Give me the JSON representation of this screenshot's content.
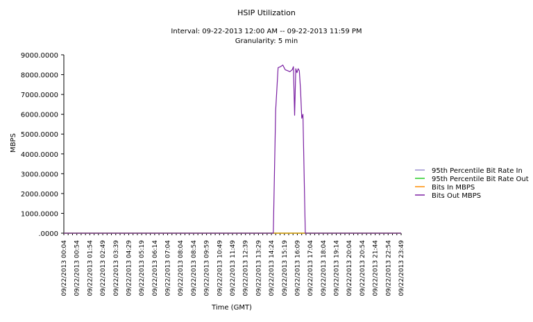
{
  "chart_data": {
    "type": "line",
    "title": "HSIP Utilization",
    "subtitle": [
      "Interval: 09-22-2013 12:00 AM -- 09-22-2013 11:59 PM",
      "Granularity: 5 min"
    ],
    "xlabel": "Time (GMT)",
    "ylabel": "MBPS",
    "xlim": [
      "00:04",
      "23:49"
    ],
    "ylim": [
      0,
      9000
    ],
    "y_ticks": [
      ".0000",
      "1000.0000",
      "2000.0000",
      "3000.0000",
      "4000.0000",
      "5000.0000",
      "6000.0000",
      "7000.0000",
      "8000.0000",
      "9000.0000"
    ],
    "x_tick_labels": [
      "09/22/2013 00:04",
      "09/22/2013 00:54",
      "09/22/2013 01:54",
      "09/22/2013 02:49",
      "09/22/2013 03:39",
      "09/22/2013 04:29",
      "09/22/2013 05:19",
      "09/22/2013 06:14",
      "09/22/2013 07:04",
      "09/22/2013 08:04",
      "09/22/2013 08:54",
      "09/22/2013 09:59",
      "09/22/2013 10:49",
      "09/22/2013 11:49",
      "09/22/2013 12:39",
      "09/22/2013 13:29",
      "09/22/2013 14:24",
      "09/22/2013 15:19",
      "09/22/2013 16:09",
      "09/22/2013 17:04",
      "09/22/2013 18:04",
      "09/22/2013 19:14",
      "09/22/2013 20:04",
      "09/22/2013 20:54",
      "09/22/2013 21:44",
      "09/22/2013 22:54",
      "09/22/2013 23:49"
    ],
    "grid": false,
    "legend_position": "right",
    "series": [
      {
        "name": "95th Percentile Bit Rate In",
        "color": "#9a8fd0",
        "x": [
          "00:04",
          "23:49"
        ],
        "values": [
          0,
          0
        ]
      },
      {
        "name": "95th Percentile Bit Rate Out",
        "color": "#22cc22",
        "x": [
          "00:04",
          "23:49"
        ],
        "values": [
          0,
          0
        ]
      },
      {
        "name": "Bits In MBPS",
        "color": "#ff8c00",
        "x": [
          "00:04",
          "23:49"
        ],
        "values": [
          0,
          0
        ]
      },
      {
        "name": "Bits Out MBPS",
        "color": "#7a1fa2",
        "x": [
          "00:04",
          "14:49",
          "14:59",
          "15:09",
          "15:19",
          "15:29",
          "15:39",
          "15:49",
          "15:59",
          "16:09",
          "16:14",
          "16:19",
          "16:24",
          "16:29",
          "16:34",
          "16:39",
          "16:44",
          "16:49",
          "16:54",
          "16:59",
          "17:04",
          "17:09",
          "23:49"
        ],
        "values": [
          0,
          0,
          6200,
          8350,
          8400,
          8480,
          8250,
          8200,
          8150,
          8250,
          8400,
          5950,
          8300,
          8100,
          8300,
          8200,
          7200,
          5800,
          6000,
          3000,
          0,
          0,
          0
        ]
      }
    ]
  }
}
